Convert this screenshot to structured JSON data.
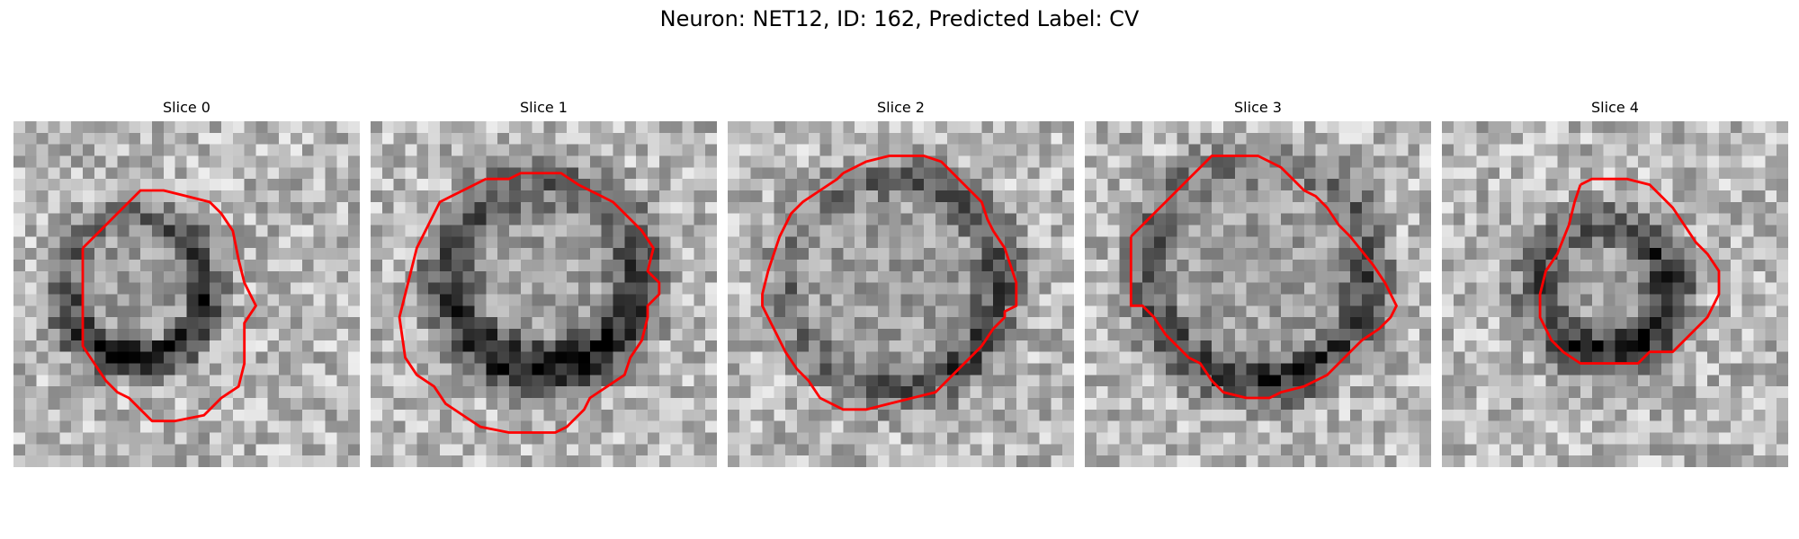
{
  "figure": {
    "title": "Neuron: NET12, ID: 162, Predicted Label: CV"
  },
  "contour_color": "#ff0000",
  "colormap": "gray",
  "panels": [
    {
      "title": "Slice 0"
    },
    {
      "title": "Slice 1"
    },
    {
      "title": "Slice 2"
    },
    {
      "title": "Slice 3"
    },
    {
      "title": "Slice 4"
    }
  ]
}
